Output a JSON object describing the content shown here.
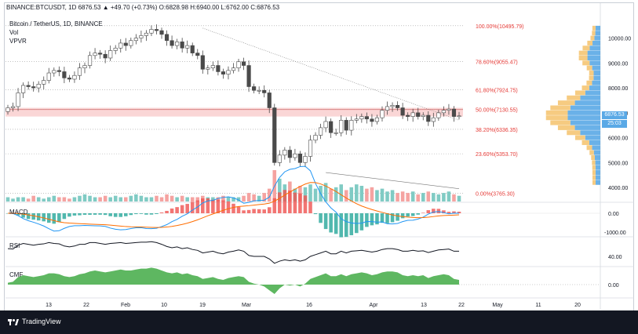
{
  "header": {
    "symbol": "BINANCE:BTCUSDT, 1D 6876.53 ▲ +49.70 (+0.73%) O:6828.98 H:6940.00 L:6762.00 C:6876.53"
  },
  "legend": {
    "title": "Bitcoin / TetherUS, 1D, BINANCE",
    "items": [
      "Vol",
      "VPVR"
    ]
  },
  "panes": {
    "macd": "MACD",
    "rsi": "RSI",
    "cmf": "CMF"
  },
  "price_tags": {
    "last": "6876.53",
    "countdown": "25:03"
  },
  "footer": {
    "brand": "TradingView"
  },
  "colors": {
    "up": "#26a69a",
    "down": "#ef5350",
    "candle_up": "#ffffff",
    "candle_down": "#4a4a4a",
    "fib_label": "#e53935",
    "zone": "#f8c8c8",
    "vpvr_up": "#5aa9e6",
    "vpvr_down": "#f5c26b",
    "cmf": "#4caf50"
  },
  "chart_data": {
    "type": "candlestick",
    "xaxis_labels": [
      "13",
      "22",
      "Feb",
      "10",
      "19",
      "Mar",
      "16",
      "Apr",
      "13",
      "22",
      "May",
      "11",
      "20"
    ],
    "price_axis": [
      10000,
      9000,
      8000,
      7000,
      6000,
      5000,
      4000
    ],
    "price_axis_labels": [
      "10000.00",
      "9000.00",
      "8000.00",
      "7000.00",
      "6000.00",
      "5000.00",
      "4000.00"
    ],
    "ylim": [
      3500,
      10900
    ],
    "fib_levels": [
      {
        "label": "100.00%(10495.79)",
        "price": 10495.79
      },
      {
        "label": "78.60%(9055.47)",
        "price": 9055.47
      },
      {
        "label": "61.80%(7924.75)",
        "price": 7924.75
      },
      {
        "label": "50.00%(7130.55)",
        "price": 7130.55
      },
      {
        "label": "38.20%(6336.35)",
        "price": 6336.35
      },
      {
        "label": "23.60%(5353.70)",
        "price": 5353.7
      },
      {
        "label": "0.00%(3765.30)",
        "price": 3765.3
      }
    ],
    "zone": [
      6850,
      7200
    ],
    "macd_axis": [
      0,
      -1000
    ],
    "macd_axis_labels": [
      "0.00",
      "-1000.00"
    ],
    "rsi_axis_label": "40.00",
    "cmf_axis_label": "0.00",
    "price_series": [
      7200,
      7250,
      7800,
      8100,
      8050,
      8000,
      8150,
      8300,
      8600,
      8700,
      8650,
      8400,
      8350,
      8500,
      8800,
      8900,
      9300,
      9400,
      9350,
      9200,
      9500,
      9600,
      9800,
      9700,
      9900,
      10000,
      10100,
      10200,
      10350,
      10300,
      10150,
      9900,
      9700,
      9850,
      9600,
      9700,
      9400,
      9300,
      8750,
      8800,
      8900,
      8650,
      8550,
      8700,
      8800,
      9050,
      8900,
      8050,
      7900,
      7900,
      7800,
      7200,
      5000,
      5300,
      5500,
      5200,
      5350,
      5000,
      5250,
      5900,
      6100,
      6400,
      6650,
      6200,
      6200,
      6700,
      6300,
      6700,
      6750,
      6850,
      6750,
      6650,
      6800,
      7100,
      7250,
      7300,
      7200,
      6900,
      6850,
      7000,
      6850,
      6900,
      6650,
      6800,
      7000,
      7100,
      7150,
      6850,
      6876
    ],
    "volume_series": [
      3,
      2,
      3,
      3,
      2,
      4,
      3,
      2,
      3,
      4,
      3,
      3,
      2,
      3,
      4,
      5,
      4,
      3,
      3,
      4,
      3,
      4,
      3,
      3,
      4,
      5,
      4,
      3,
      3,
      4,
      3,
      5,
      4,
      3,
      4,
      3,
      3,
      3,
      4,
      3,
      3,
      3,
      4,
      3,
      3,
      3,
      4,
      6,
      5,
      4,
      6,
      9,
      22,
      16,
      12,
      14,
      9,
      11,
      10,
      12,
      9,
      11,
      13,
      9,
      10,
      12,
      8,
      10,
      12,
      11,
      9,
      10,
      8,
      9,
      7,
      8,
      6,
      7,
      6,
      7,
      5,
      6,
      7,
      6,
      5,
      6,
      7,
      5,
      4
    ],
    "rsi_series": [
      58,
      57,
      66,
      70,
      68,
      66,
      68,
      69,
      72,
      70,
      69,
      64,
      62,
      64,
      68,
      68,
      72,
      72,
      70,
      68,
      70,
      71,
      72,
      70,
      71,
      72,
      73,
      73,
      74,
      72,
      68,
      63,
      60,
      62,
      58,
      60,
      56,
      54,
      48,
      50,
      52,
      48,
      46,
      50,
      52,
      55,
      52,
      42,
      40,
      40,
      40,
      34,
      24,
      29,
      32,
      30,
      32,
      29,
      32,
      40,
      44,
      48,
      52,
      46,
      46,
      52,
      48,
      52,
      53,
      54,
      52,
      50,
      52,
      56,
      58,
      58,
      56,
      52,
      52,
      54,
      52,
      53,
      49,
      52,
      55,
      56,
      57,
      52,
      52
    ],
    "cmf_series": [
      0.02,
      0.03,
      0.08,
      0.1,
      0.09,
      0.08,
      0.09,
      0.1,
      0.12,
      0.12,
      0.11,
      0.09,
      0.08,
      0.09,
      0.11,
      0.12,
      0.14,
      0.15,
      0.14,
      0.13,
      0.14,
      0.15,
      0.16,
      0.15,
      0.15,
      0.16,
      0.17,
      0.17,
      0.18,
      0.17,
      0.15,
      0.13,
      0.12,
      0.13,
      0.11,
      0.12,
      0.1,
      0.09,
      0.06,
      0.07,
      0.08,
      0.06,
      0.05,
      0.07,
      0.08,
      0.09,
      0.08,
      0.03,
      0.01,
      0.0,
      -0.02,
      -0.06,
      -0.1,
      -0.04,
      0.0,
      -0.01,
      0.0,
      -0.02,
      0.01,
      0.06,
      0.08,
      0.1,
      0.12,
      0.09,
      0.09,
      0.11,
      0.09,
      0.11,
      0.12,
      0.13,
      0.12,
      0.1,
      0.11,
      0.13,
      0.14,
      0.14,
      0.13,
      0.1,
      0.09,
      0.1,
      0.09,
      0.1,
      0.07,
      0.09,
      0.1,
      0.11,
      0.1,
      0.06,
      0.05
    ]
  }
}
